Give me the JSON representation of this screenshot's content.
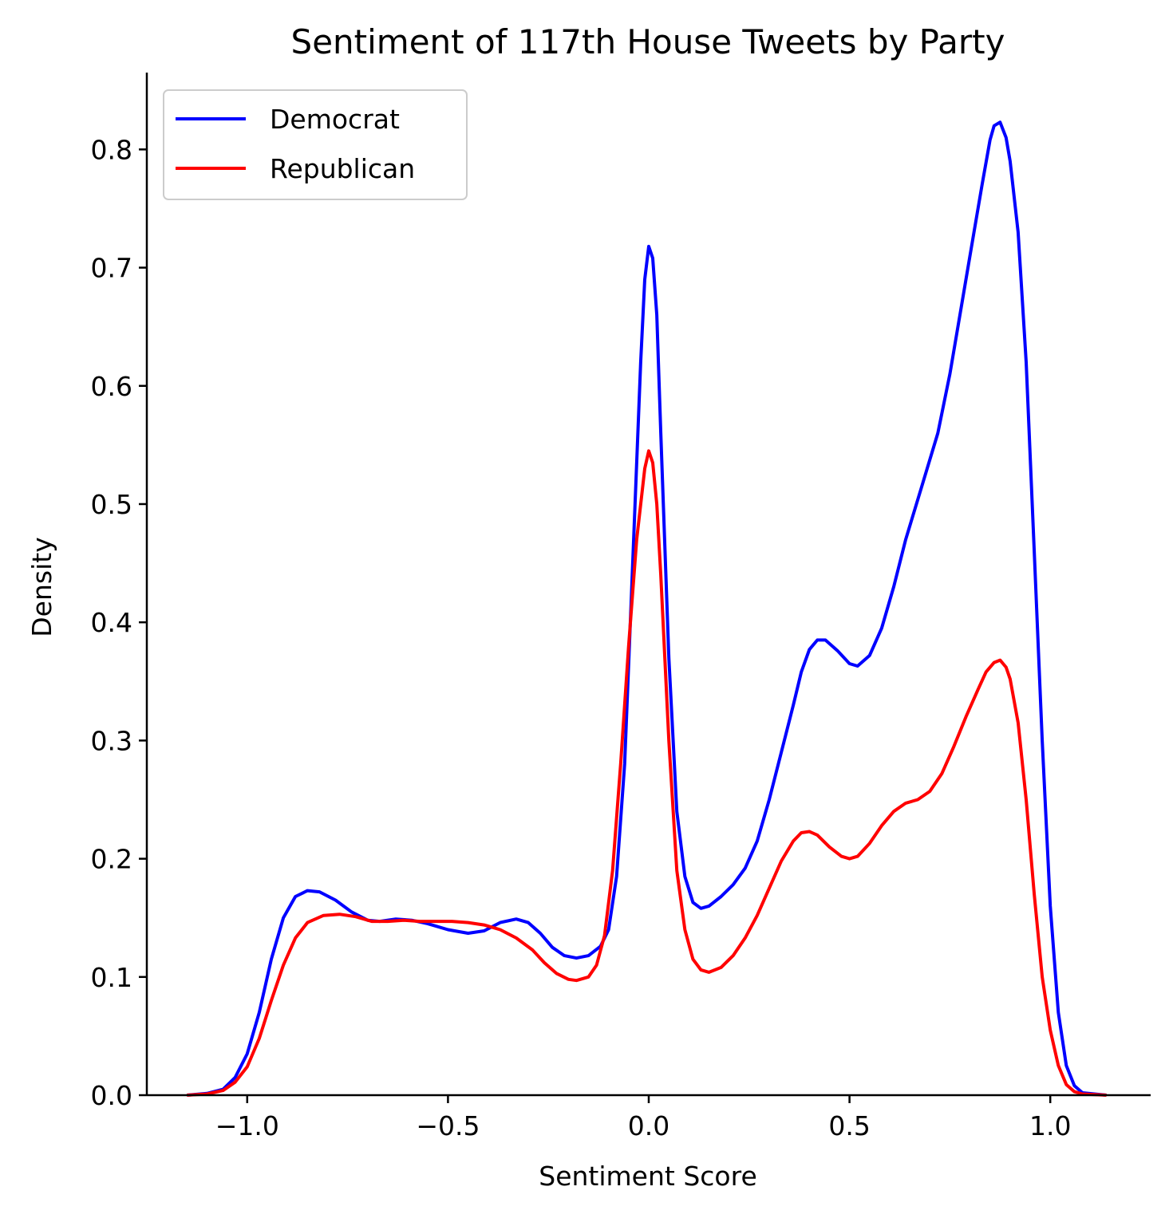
{
  "chart_data": {
    "type": "line",
    "title": "Sentiment of 117th House Tweets by Party",
    "xlabel": "Sentiment Score",
    "ylabel": "Density",
    "xlim": [
      -1.25,
      1.25
    ],
    "ylim": [
      0.0,
      0.865
    ],
    "xticks": [
      -1.0,
      -0.5,
      0.0,
      0.5,
      1.0
    ],
    "xtick_labels": [
      "−1.0",
      "−0.5",
      "0.0",
      "0.5",
      "1.0"
    ],
    "yticks": [
      0.0,
      0.1,
      0.2,
      0.3,
      0.4,
      0.5,
      0.6,
      0.7,
      0.8
    ],
    "ytick_labels": [
      "0.0",
      "0.1",
      "0.2",
      "0.3",
      "0.4",
      "0.5",
      "0.6",
      "0.7",
      "0.8"
    ],
    "grid": false,
    "legend_position": "top-left",
    "series": [
      {
        "name": "Democrat",
        "color": "#0000ff",
        "points": [
          [
            -1.15,
            0.0
          ],
          [
            -1.1,
            0.0015
          ],
          [
            -1.06,
            0.005
          ],
          [
            -1.03,
            0.015
          ],
          [
            -1.0,
            0.035
          ],
          [
            -0.97,
            0.07
          ],
          [
            -0.94,
            0.115
          ],
          [
            -0.91,
            0.15
          ],
          [
            -0.88,
            0.168
          ],
          [
            -0.85,
            0.173
          ],
          [
            -0.82,
            0.172
          ],
          [
            -0.78,
            0.165
          ],
          [
            -0.74,
            0.155
          ],
          [
            -0.7,
            0.148
          ],
          [
            -0.67,
            0.147
          ],
          [
            -0.63,
            0.149
          ],
          [
            -0.59,
            0.148
          ],
          [
            -0.55,
            0.145
          ],
          [
            -0.5,
            0.14
          ],
          [
            -0.45,
            0.137
          ],
          [
            -0.41,
            0.139
          ],
          [
            -0.37,
            0.146
          ],
          [
            -0.33,
            0.149
          ],
          [
            -0.3,
            0.146
          ],
          [
            -0.27,
            0.137
          ],
          [
            -0.24,
            0.125
          ],
          [
            -0.21,
            0.118
          ],
          [
            -0.18,
            0.116
          ],
          [
            -0.15,
            0.118
          ],
          [
            -0.12,
            0.126
          ],
          [
            -0.1,
            0.14
          ],
          [
            -0.08,
            0.185
          ],
          [
            -0.06,
            0.28
          ],
          [
            -0.04,
            0.45
          ],
          [
            -0.02,
            0.62
          ],
          [
            -0.01,
            0.69
          ],
          [
            0.0,
            0.718
          ],
          [
            0.01,
            0.708
          ],
          [
            0.02,
            0.66
          ],
          [
            0.03,
            0.56
          ],
          [
            0.05,
            0.37
          ],
          [
            0.07,
            0.24
          ],
          [
            0.09,
            0.185
          ],
          [
            0.11,
            0.163
          ],
          [
            0.13,
            0.158
          ],
          [
            0.15,
            0.16
          ],
          [
            0.18,
            0.168
          ],
          [
            0.21,
            0.178
          ],
          [
            0.24,
            0.192
          ],
          [
            0.27,
            0.215
          ],
          [
            0.3,
            0.25
          ],
          [
            0.33,
            0.29
          ],
          [
            0.36,
            0.33
          ],
          [
            0.38,
            0.358
          ],
          [
            0.4,
            0.377
          ],
          [
            0.42,
            0.385
          ],
          [
            0.44,
            0.385
          ],
          [
            0.47,
            0.376
          ],
          [
            0.5,
            0.365
          ],
          [
            0.52,
            0.363
          ],
          [
            0.55,
            0.372
          ],
          [
            0.58,
            0.395
          ],
          [
            0.61,
            0.43
          ],
          [
            0.64,
            0.47
          ],
          [
            0.68,
            0.515
          ],
          [
            0.72,
            0.56
          ],
          [
            0.75,
            0.61
          ],
          [
            0.78,
            0.67
          ],
          [
            0.81,
            0.73
          ],
          [
            0.83,
            0.77
          ],
          [
            0.85,
            0.808
          ],
          [
            0.86,
            0.82
          ],
          [
            0.875,
            0.823
          ],
          [
            0.89,
            0.81
          ],
          [
            0.9,
            0.79
          ],
          [
            0.92,
            0.73
          ],
          [
            0.94,
            0.62
          ],
          [
            0.96,
            0.46
          ],
          [
            0.98,
            0.3
          ],
          [
            1.0,
            0.16
          ],
          [
            1.02,
            0.07
          ],
          [
            1.04,
            0.025
          ],
          [
            1.06,
            0.008
          ],
          [
            1.08,
            0.002
          ],
          [
            1.14,
            0.0
          ]
        ]
      },
      {
        "name": "Republican",
        "color": "#ff0000",
        "points": [
          [
            -1.15,
            0.0
          ],
          [
            -1.1,
            0.001
          ],
          [
            -1.06,
            0.004
          ],
          [
            -1.03,
            0.011
          ],
          [
            -1.0,
            0.024
          ],
          [
            -0.97,
            0.048
          ],
          [
            -0.94,
            0.08
          ],
          [
            -0.91,
            0.11
          ],
          [
            -0.88,
            0.133
          ],
          [
            -0.85,
            0.146
          ],
          [
            -0.81,
            0.152
          ],
          [
            -0.77,
            0.153
          ],
          [
            -0.73,
            0.151
          ],
          [
            -0.69,
            0.147
          ],
          [
            -0.65,
            0.147
          ],
          [
            -0.61,
            0.148
          ],
          [
            -0.57,
            0.147
          ],
          [
            -0.53,
            0.147
          ],
          [
            -0.49,
            0.147
          ],
          [
            -0.45,
            0.146
          ],
          [
            -0.41,
            0.144
          ],
          [
            -0.37,
            0.14
          ],
          [
            -0.33,
            0.133
          ],
          [
            -0.29,
            0.123
          ],
          [
            -0.26,
            0.112
          ],
          [
            -0.23,
            0.103
          ],
          [
            -0.2,
            0.098
          ],
          [
            -0.18,
            0.097
          ],
          [
            -0.15,
            0.1
          ],
          [
            -0.13,
            0.11
          ],
          [
            -0.11,
            0.135
          ],
          [
            -0.09,
            0.19
          ],
          [
            -0.07,
            0.28
          ],
          [
            -0.05,
            0.38
          ],
          [
            -0.03,
            0.47
          ],
          [
            -0.01,
            0.53
          ],
          [
            0.0,
            0.545
          ],
          [
            0.01,
            0.535
          ],
          [
            0.02,
            0.5
          ],
          [
            0.03,
            0.44
          ],
          [
            0.05,
            0.3
          ],
          [
            0.07,
            0.19
          ],
          [
            0.09,
            0.14
          ],
          [
            0.11,
            0.115
          ],
          [
            0.13,
            0.106
          ],
          [
            0.15,
            0.104
          ],
          [
            0.18,
            0.108
          ],
          [
            0.21,
            0.118
          ],
          [
            0.24,
            0.133
          ],
          [
            0.27,
            0.152
          ],
          [
            0.3,
            0.175
          ],
          [
            0.33,
            0.198
          ],
          [
            0.36,
            0.215
          ],
          [
            0.38,
            0.222
          ],
          [
            0.4,
            0.223
          ],
          [
            0.42,
            0.22
          ],
          [
            0.45,
            0.21
          ],
          [
            0.48,
            0.202
          ],
          [
            0.5,
            0.2
          ],
          [
            0.52,
            0.202
          ],
          [
            0.55,
            0.213
          ],
          [
            0.58,
            0.228
          ],
          [
            0.61,
            0.24
          ],
          [
            0.64,
            0.247
          ],
          [
            0.67,
            0.25
          ],
          [
            0.7,
            0.257
          ],
          [
            0.73,
            0.272
          ],
          [
            0.76,
            0.295
          ],
          [
            0.79,
            0.32
          ],
          [
            0.82,
            0.343
          ],
          [
            0.84,
            0.358
          ],
          [
            0.86,
            0.366
          ],
          [
            0.875,
            0.368
          ],
          [
            0.89,
            0.362
          ],
          [
            0.9,
            0.352
          ],
          [
            0.92,
            0.315
          ],
          [
            0.94,
            0.25
          ],
          [
            0.96,
            0.17
          ],
          [
            0.98,
            0.1
          ],
          [
            1.0,
            0.055
          ],
          [
            1.02,
            0.025
          ],
          [
            1.04,
            0.009
          ],
          [
            1.06,
            0.003
          ],
          [
            1.08,
            0.001
          ],
          [
            1.14,
            0.0
          ]
        ]
      }
    ]
  }
}
